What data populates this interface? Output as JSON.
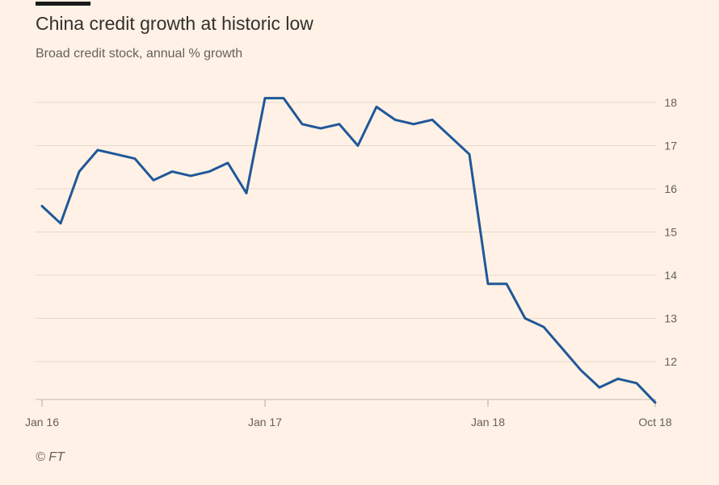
{
  "header": {
    "title": "China credit growth at historic low",
    "subtitle": "Broad credit stock, annual % growth"
  },
  "footer": {
    "source": "© FT"
  },
  "chart_data": {
    "type": "line",
    "title": "China credit growth at historic low",
    "subtitle": "Broad credit stock, annual % growth",
    "xlabel": "",
    "ylabel": "",
    "ylim": [
      11,
      18.6
    ],
    "y_ticks": [
      12,
      13,
      14,
      15,
      16,
      17,
      18
    ],
    "x_ticks": [
      {
        "index": 0,
        "label": "Jan 16"
      },
      {
        "index": 12,
        "label": "Jan 17"
      },
      {
        "index": 24,
        "label": "Jan 18"
      },
      {
        "index": 33,
        "label": "Oct 18"
      }
    ],
    "series": [
      {
        "name": "Broad credit stock growth",
        "color": "#1f5799",
        "x": [
          "Jan 16",
          "Feb 16",
          "Mar 16",
          "Apr 16",
          "May 16",
          "Jun 16",
          "Jul 16",
          "Aug 16",
          "Sep 16",
          "Oct 16",
          "Nov 16",
          "Dec 16",
          "Jan 17",
          "Feb 17",
          "Mar 17",
          "Apr 17",
          "May 17",
          "Jun 17",
          "Jul 17",
          "Aug 17",
          "Sep 17",
          "Oct 17",
          "Nov 17",
          "Dec 17",
          "Jan 18",
          "Feb 18",
          "Mar 18",
          "Apr 18",
          "May 18",
          "Jun 18",
          "Jul 18",
          "Aug 18",
          "Sep 18",
          "Oct 18"
        ],
        "values": [
          15.6,
          15.2,
          16.4,
          16.9,
          16.8,
          16.7,
          16.2,
          16.4,
          16.3,
          16.4,
          16.6,
          15.9,
          18.1,
          18.1,
          17.5,
          17.4,
          17.5,
          17.0,
          17.9,
          17.6,
          17.5,
          17.6,
          17.2,
          16.8,
          13.8,
          13.8,
          13.0,
          12.8,
          12.3,
          11.8,
          11.4,
          11.6,
          11.5,
          11.05
        ]
      }
    ],
    "grid": true,
    "y_axis_side": "right"
  }
}
